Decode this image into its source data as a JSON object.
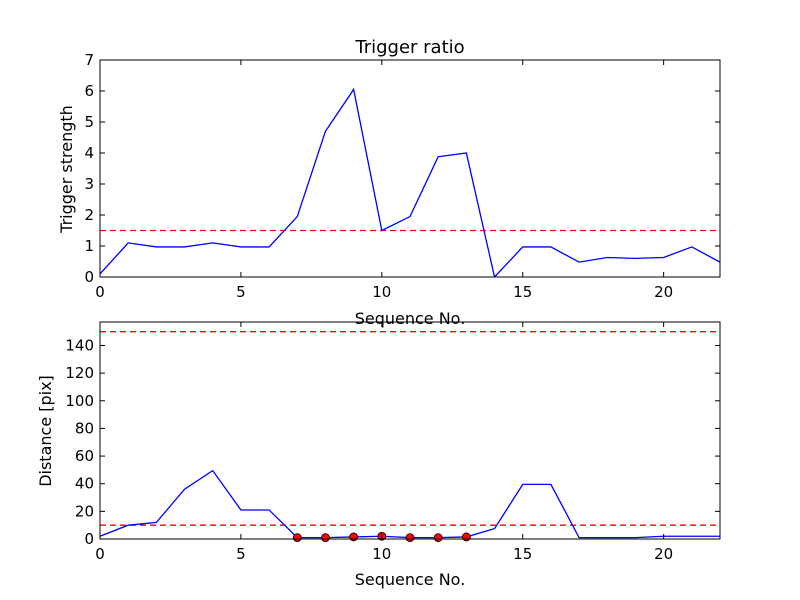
{
  "chart_data": [
    {
      "type": "line",
      "title": "Trigger ratio",
      "xlabel": "Sequence No.",
      "ylabel": "Trigger strength",
      "xlim": [
        0,
        22
      ],
      "ylim": [
        0,
        7
      ],
      "xticks": [
        0,
        5,
        10,
        15,
        20
      ],
      "yticks": [
        0,
        1,
        2,
        3,
        4,
        5,
        6,
        7
      ],
      "grid": false,
      "series": [
        {
          "color": "#0000ff",
          "style": "solid",
          "x": [
            0,
            1,
            2,
            3,
            4,
            5,
            6,
            7,
            8,
            9,
            10,
            11,
            12,
            13,
            14,
            15,
            16,
            17,
            18,
            19,
            20,
            21,
            22
          ],
          "y": [
            0.1,
            1.1,
            0.97,
            0.97,
            1.1,
            0.97,
            0.97,
            1.95,
            4.7,
            6.05,
            1.5,
            1.95,
            3.88,
            4.0,
            0.0,
            0.97,
            0.97,
            0.48,
            0.63,
            0.6,
            0.63,
            0.97,
            0.48
          ]
        }
      ],
      "hlines": [
        {
          "y": 1.5,
          "color": "#ff0000",
          "style": "dashed"
        }
      ]
    },
    {
      "type": "line",
      "title": "",
      "xlabel": "Sequence No.",
      "ylabel": "Distance [pix]",
      "xlim": [
        0,
        22
      ],
      "ylim": [
        0,
        157
      ],
      "xticks": [
        0,
        5,
        10,
        15,
        20
      ],
      "yticks": [
        0,
        20,
        40,
        60,
        80,
        100,
        120,
        140
      ],
      "grid": false,
      "series": [
        {
          "color": "#0000ff",
          "style": "solid",
          "x": [
            0,
            1,
            2,
            3,
            4,
            5,
            6,
            7,
            8,
            9,
            10,
            11,
            12,
            13,
            14,
            15,
            16,
            17,
            18,
            19,
            20,
            21,
            22
          ],
          "y": [
            2,
            10,
            12,
            36,
            49.5,
            21,
            21,
            1,
            1,
            1.5,
            2,
            1,
            1,
            1.5,
            7.5,
            39.5,
            39.5,
            1,
            1,
            1,
            2,
            2,
            2
          ]
        },
        {
          "color": "#ff0000",
          "style": "markers",
          "x": [
            7,
            8,
            9,
            10,
            11,
            12,
            13
          ],
          "y": [
            1,
            1,
            1.5,
            2,
            1,
            1,
            1.5
          ]
        }
      ],
      "hlines": [
        {
          "y": 150,
          "color": "#ff0000",
          "style": "dashed"
        },
        {
          "y": 10,
          "color": "#ff0000",
          "style": "dashed"
        }
      ]
    }
  ]
}
